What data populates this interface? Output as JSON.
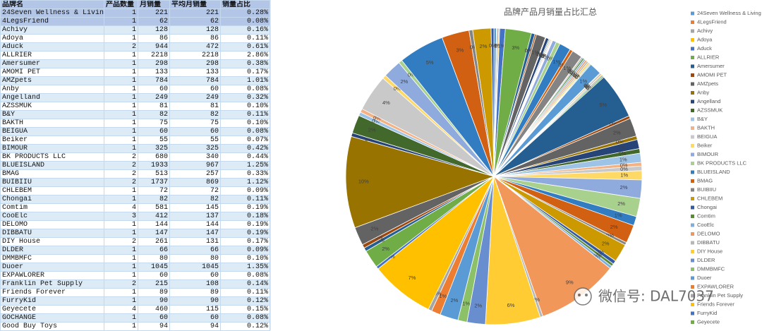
{
  "table": {
    "columns": [
      "品牌名",
      "产品数量",
      "月销量",
      "平均月销量",
      "销量占比"
    ],
    "rows": [
      [
        "24Seven Wellness & Living",
        1,
        221,
        221,
        "0.28%"
      ],
      [
        "4LegsFriend",
        1,
        62,
        62,
        "0.08%"
      ],
      [
        "Achivy",
        1,
        128,
        128,
        "0.16%"
      ],
      [
        "Adoya",
        1,
        86,
        86,
        "0.11%"
      ],
      [
        "Aduck",
        2,
        944,
        472,
        "0.61%"
      ],
      [
        "ALLRIER",
        1,
        2218,
        2218,
        "2.86%"
      ],
      [
        "Amersumer",
        1,
        298,
        298,
        "0.38%"
      ],
      [
        "AMOMI PET",
        1,
        133,
        133,
        "0.17%"
      ],
      [
        "AMZpets",
        1,
        784,
        784,
        "1.01%"
      ],
      [
        "Anby",
        1,
        60,
        60,
        "0.08%"
      ],
      [
        "Angelland",
        1,
        249,
        249,
        "0.32%"
      ],
      [
        "AZSSMUK",
        1,
        81,
        81,
        "0.10%"
      ],
      [
        "B&Y",
        1,
        82,
        82,
        "0.11%"
      ],
      [
        "BAKTH",
        1,
        75,
        75,
        "0.10%"
      ],
      [
        "BEIGUA",
        1,
        60,
        60,
        "0.08%"
      ],
      [
        "Beiker",
        1,
        55,
        55,
        "0.07%"
      ],
      [
        "BIMOUR",
        1,
        325,
        325,
        "0.42%"
      ],
      [
        "BK PRODUCTS LLC",
        2,
        680,
        340,
        "0.44%"
      ],
      [
        "BLUEISLAND",
        2,
        1933,
        967,
        "1.25%"
      ],
      [
        "BMAG",
        2,
        513,
        257,
        "0.33%"
      ],
      [
        "BUIBIIU",
        2,
        1737,
        869,
        "1.12%"
      ],
      [
        "CHLEBEM",
        1,
        72,
        72,
        "0.09%"
      ],
      [
        "Chongai",
        1,
        82,
        82,
        "0.11%"
      ],
      [
        "Comtim",
        4,
        581,
        145,
        "0.19%"
      ],
      [
        "CooElc",
        3,
        412,
        137,
        "0.18%"
      ],
      [
        "DELOMO",
        1,
        144,
        144,
        "0.19%"
      ],
      [
        "DIBBATU",
        1,
        147,
        147,
        "0.19%"
      ],
      [
        "DIY House",
        2,
        261,
        131,
        "0.17%"
      ],
      [
        "DLDER",
        1,
        66,
        66,
        "0.09%"
      ],
      [
        "DMMBMFC",
        1,
        80,
        80,
        "0.10%"
      ],
      [
        "Duoer",
        1,
        1045,
        1045,
        "1.35%"
      ],
      [
        "EXPAWLORER",
        1,
        60,
        60,
        "0.08%"
      ],
      [
        "Franklin Pet Supply",
        2,
        215,
        108,
        "0.14%"
      ],
      [
        "Friends Forever",
        1,
        89,
        89,
        "0.11%"
      ],
      [
        "FurryKid",
        1,
        90,
        90,
        "0.12%"
      ],
      [
        "Geyecete",
        4,
        460,
        115,
        "0.15%"
      ],
      [
        "GOCHANGE",
        1,
        60,
        60,
        "0.08%"
      ],
      [
        "Good Buy Toys",
        1,
        94,
        94,
        "0.12%"
      ]
    ]
  },
  "chart_data": {
    "type": "pie",
    "title": "品牌产品月销量占比汇总",
    "legend": "right",
    "colors": [
      "#5b9bd5",
      "#ed7d31",
      "#a5a5a5",
      "#ffc000",
      "#4472c4",
      "#70ad47",
      "#255e91",
      "#9e480e",
      "#636363",
      "#997300",
      "#264478",
      "#43682b",
      "#9dc3e6",
      "#f4b183",
      "#c9c9c9",
      "#ffd966",
      "#8faadc",
      "#a9d18e",
      "#327dc2",
      "#d26012",
      "#848484",
      "#cc9a00",
      "#335aa1",
      "#5a8a39",
      "#7cafdd",
      "#f1975a",
      "#b7b7b7",
      "#ffcd33",
      "#698ed0",
      "#8cc168"
    ],
    "categories": [
      "24Seven Wellness & Living",
      "4LegsFriend",
      "Achivy",
      "Adoya",
      "Aduck",
      "ALLRIER",
      "Amersumer",
      "AMOMI PET",
      "AMZpets",
      "Anby",
      "Angelland",
      "AZSSMUK",
      "B&Y",
      "BAKTH",
      "BEIGUA",
      "Beiker",
      "BIMOUR",
      "BK PRODUCTS LLC",
      "BLUEISLAND",
      "BMAG",
      "BUIBIIU",
      "CHLEBEM",
      "Chongai",
      "Comtim",
      "CooElc",
      "DELOMO",
      "DIBBATU",
      "DIY House",
      "DLDER",
      "DMMBMFC",
      "Duoer",
      "EXPAWLORER",
      "Franklin Pet Supply",
      "Friends Forever",
      "FurryKid",
      "Geyecete",
      null,
      null,
      null,
      null,
      null,
      null,
      null,
      null,
      null,
      null,
      null,
      null,
      null,
      null,
      null,
      null,
      null,
      null,
      null,
      null,
      null,
      null,
      null,
      null,
      null,
      null,
      null,
      null,
      null,
      null,
      null,
      null,
      null,
      null,
      null,
      null,
      null,
      null,
      null,
      null,
      null,
      null,
      null,
      null,
      null,
      null,
      null
    ],
    "values": [
      0.28,
      0.08,
      0.16,
      0.11,
      0.61,
      2.86,
      0.38,
      0.17,
      1.01,
      0.08,
      0.32,
      0.1,
      0.11,
      0.1,
      0.08,
      0.07,
      0.42,
      0.44,
      1.25,
      0.33,
      1.12,
      0.09,
      0.11,
      0.19,
      0.18,
      0.19,
      0.19,
      0.17,
      0.09,
      0.1,
      1.35,
      0.08,
      0.14,
      0.11,
      0.12,
      0.15,
      5,
      0.3,
      2,
      0.4,
      1,
      0.5,
      1,
      0.4,
      0.5,
      1,
      2,
      2,
      1,
      2,
      0.3,
      2,
      0.4,
      0.3,
      0.3,
      9,
      0.3,
      6,
      2,
      1,
      2,
      1,
      0.4,
      7,
      0.3,
      2,
      0.4,
      0.4,
      2,
      10,
      0.4,
      2,
      0.4,
      0.4,
      4,
      0.4,
      2,
      0.4,
      5,
      3,
      0.4,
      2,
      0.3
    ],
    "value_labels": [
      "0%",
      "0%",
      "0%",
      "0%",
      "1%",
      "3%",
      "0%",
      "0%",
      "1%",
      "0%",
      "0%",
      "0%",
      "0%",
      "0%",
      "0%",
      "0%",
      "0%",
      "0%",
      "1%",
      "0%",
      "1%",
      "0%",
      "0%",
      "0%",
      "0%",
      "0%",
      "0%",
      "0%",
      "0%",
      "0%",
      "1%",
      "0%",
      "0%",
      "0%",
      "0%",
      "0%",
      "5%",
      "0%",
      "2%",
      "0%",
      "1%",
      "0%",
      "1%",
      "0%",
      "0%",
      "1%",
      "2%",
      "2%",
      "1%",
      "2%",
      "0%",
      "2%",
      "0%",
      "0%",
      "0%",
      "9%",
      "0%",
      "6%",
      "2%",
      "1%",
      "2%",
      "1%",
      "0%",
      "7%",
      "0%",
      "2%",
      "0%",
      "0%",
      "2%",
      "10%",
      "0%",
      "2%",
      "0%",
      "0%",
      "4%",
      "0%",
      "2%",
      "0%",
      "5%",
      "3%",
      "0%",
      "2%",
      "0%"
    ]
  },
  "watermark": "微信号: DAL7037"
}
